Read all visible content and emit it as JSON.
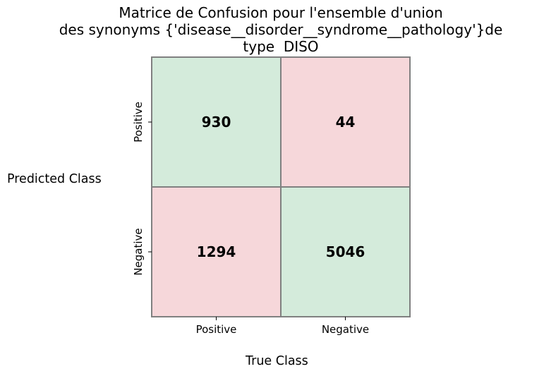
{
  "chart_data": {
    "type": "heatmap",
    "title_lines": [
      "Matrice de Confusion pour l'ensemble d'union",
      "des synonyms {'disease__disorder__syndrome__pathology'}de",
      "type  DISO"
    ],
    "xlabel": "True Class",
    "ylabel": "Predicted Class",
    "x_categories": [
      "Positive",
      "Negative"
    ],
    "y_categories": [
      "Positive",
      "Negative"
    ],
    "cells": [
      [
        930,
        44
      ],
      [
        1294,
        5046
      ]
    ],
    "colors": {
      "correct": "#d4ebdb",
      "incorrect": "#f6d7da",
      "border": "#808080",
      "text": "#000000"
    }
  }
}
